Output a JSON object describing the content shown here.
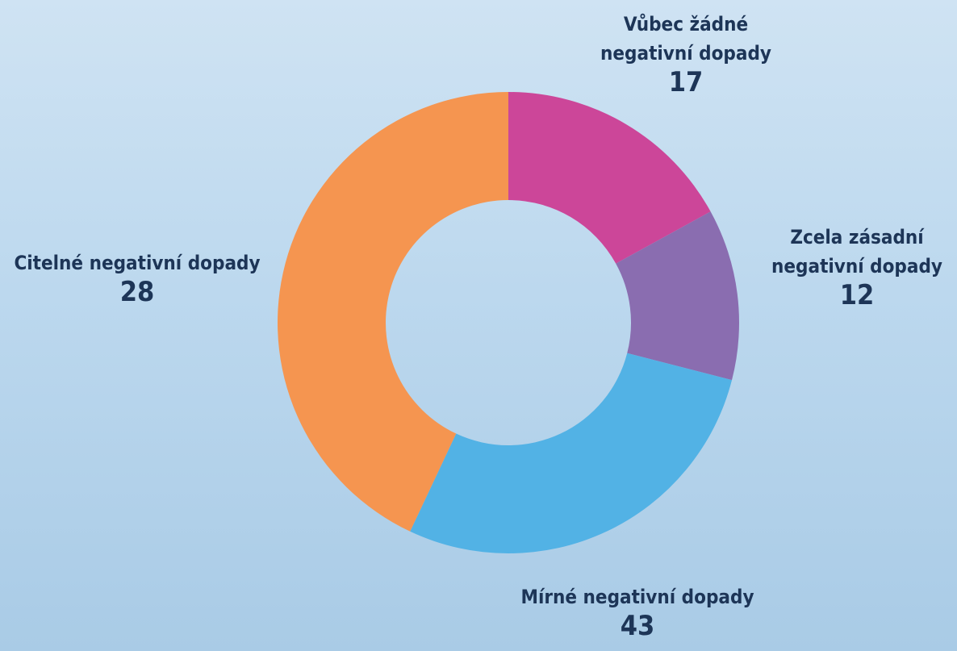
{
  "chart_data": {
    "type": "donut",
    "categories": [
      "Vůbec žádné negativní dopady",
      "Zcela zásadní negativní dopady",
      "Citelné negativní dopady",
      "Mírné negativní dopady"
    ],
    "values": [
      17,
      12,
      28,
      43
    ],
    "colors": [
      "#cc4699",
      "#8a6db0",
      "#52b2e5",
      "#f59550"
    ]
  }
}
